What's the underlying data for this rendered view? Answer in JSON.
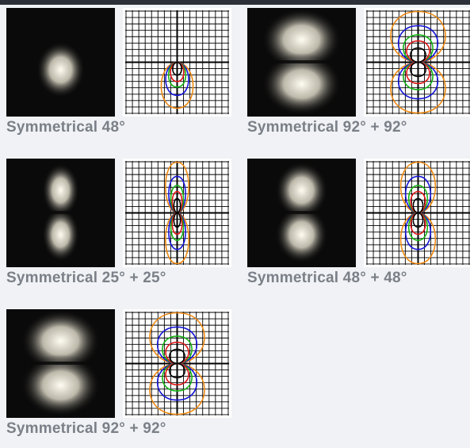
{
  "items": [
    {
      "label": "Symmetrical 48°",
      "beam": "down",
      "spread": 0.35
    },
    {
      "label": "Symmetrical 92° + 92°",
      "beam": "both",
      "spread": 0.75
    },
    {
      "label": "Symmetrical 25° + 25°",
      "beam": "both",
      "spread": 0.2
    },
    {
      "label": "Symmetrical 48° + 48°",
      "beam": "both",
      "spread": 0.4
    },
    {
      "label": "Symmetrical 92° + 92°",
      "beam": "both",
      "spread": 0.75
    }
  ],
  "colors": {
    "orange": "#f08a12",
    "blue": "#1515d8",
    "green": "#15b515",
    "red": "#e01515",
    "black": "#000000"
  }
}
